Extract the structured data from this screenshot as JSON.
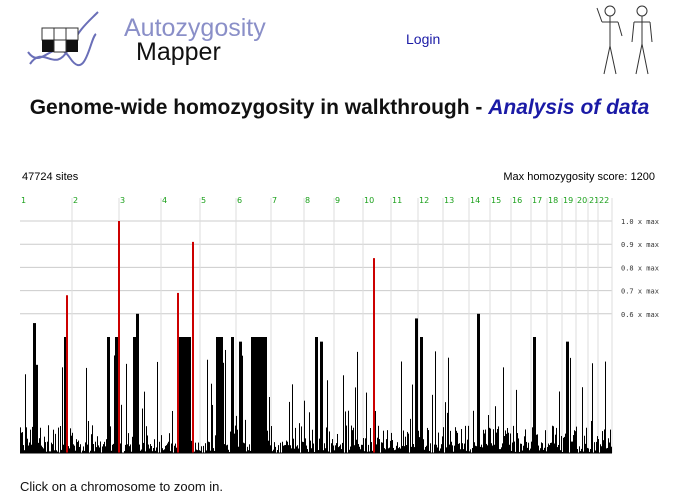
{
  "header": {
    "logo_title": "Autozygosity",
    "logo_subtitle": "Mapper",
    "login_label": "Login"
  },
  "page": {
    "title_main": "Genome-wide homozygosity in walkthrough - ",
    "title_highlight": "Analysis of data",
    "sites_label": "47724 sites",
    "max_score_label": "Max homozygosity score: 1200",
    "footer_text": "Click on a chromosome to zoom in."
  },
  "colors": {
    "chromosome_label": "#1aa01a",
    "bar_normal": "#000000",
    "bar_highlight": "#cc0000",
    "grid": "#cccccc",
    "title_highlight": "#1a1aa6"
  },
  "icons": [
    "logo-dna-icon",
    "human-figures-icon"
  ],
  "chart_data": {
    "type": "bar",
    "title": "",
    "y_unit": "x max",
    "ylim": [
      0,
      1.0
    ],
    "gridlines": [
      1.0,
      0.9,
      0.8,
      0.7,
      0.6
    ],
    "gridline_labels": [
      "1.0 x max",
      "0.9 x max",
      "0.8 x max",
      "0.7 x max",
      "0.6 x max"
    ],
    "chromosomes": [
      "1",
      "2",
      "3",
      "4",
      "5",
      "6",
      "7",
      "8",
      "9",
      "10",
      "11",
      "12",
      "13",
      "14",
      "15",
      "16",
      "17",
      "18",
      "19",
      "20",
      "21",
      "22"
    ],
    "highlighted_peaks": [
      {
        "chromosome": "2",
        "value": 0.68
      },
      {
        "chromosome": "3",
        "value": 1.0
      },
      {
        "chromosome": "4",
        "value": 0.69
      },
      {
        "chromosome": "5",
        "value": 0.91
      },
      {
        "chromosome": "10",
        "value": 0.84
      }
    ]
  }
}
